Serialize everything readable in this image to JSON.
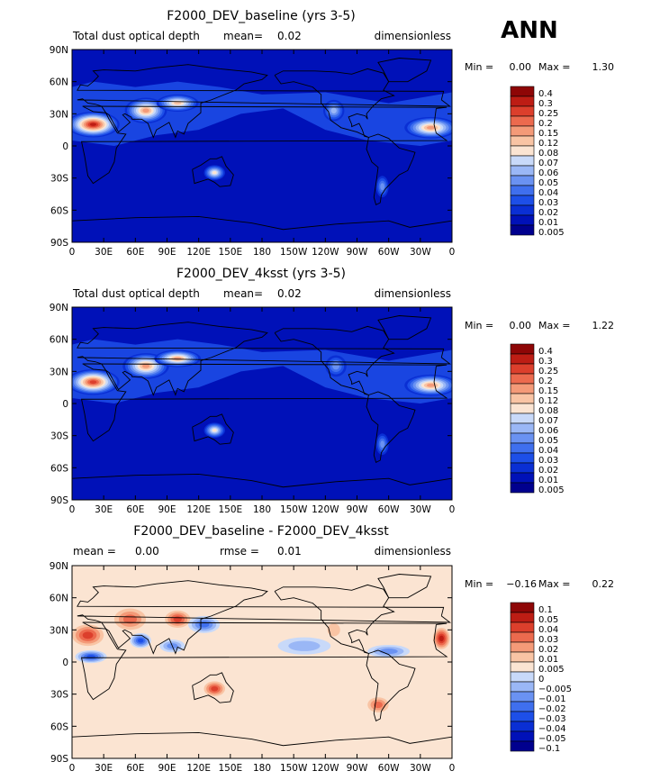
{
  "season_label": "ANN",
  "chart_data": [
    {
      "type": "heatmap",
      "title": "F2000_DEV_baseline (yrs 3-5)",
      "variable": "Total dust optical depth",
      "mean_label": "mean=",
      "mean_value": "0.02",
      "units": "dimensionless",
      "min_label": "Min =",
      "min_value": "0.00",
      "max_label": "Max =",
      "max_value": "1.30",
      "x_ticks": [
        "0",
        "30E",
        "60E",
        "90E",
        "120E",
        "150E",
        "180",
        "150W",
        "120W",
        "90W",
        "60W",
        "30W",
        "0"
      ],
      "y_ticks": [
        "90N",
        "60N",
        "30N",
        "0",
        "30S",
        "60S",
        "90S"
      ],
      "colorbar": [
        "0.005",
        "0.01",
        "0.02",
        "0.03",
        "0.04",
        "0.05",
        "0.06",
        "0.07",
        "0.08",
        "0.12",
        "0.15",
        "0.2",
        "0.25",
        "0.3",
        "0.4"
      ],
      "colors": [
        "#00008e",
        "#0011b8",
        "#0a2fd4",
        "#1d4fe8",
        "#3f6fee",
        "#6a92f2",
        "#9ab7f6",
        "#c8d9f9",
        "#fbe4d2",
        "#f9c4a4",
        "#f49a78",
        "#ec6a4e",
        "#dc3f2c",
        "#bd1d14",
        "#8e0606"
      ],
      "hotspots": [
        {
          "lon": 20,
          "lat": 20,
          "level": 13,
          "rx": 25,
          "ry": 12
        },
        {
          "lon": 70,
          "lat": 33,
          "level": 10,
          "rx": 20,
          "ry": 12
        },
        {
          "lon": 100,
          "lat": 40,
          "level": 9,
          "rx": 20,
          "ry": 8
        },
        {
          "lon": 135,
          "lat": -25,
          "level": 8,
          "rx": 10,
          "ry": 7
        },
        {
          "lon": 248,
          "lat": 33,
          "level": 6,
          "rx": 10,
          "ry": 10
        },
        {
          "lon": 294,
          "lat": -38,
          "level": 5,
          "rx": 6,
          "ry": 10
        },
        {
          "lon": 340,
          "lat": 17,
          "level": 10,
          "rx": 25,
          "ry": 10
        }
      ]
    },
    {
      "type": "heatmap",
      "title": "F2000_DEV_4ksst (yrs 3-5)",
      "variable": "Total dust optical depth",
      "mean_label": "mean=",
      "mean_value": "0.02",
      "units": "dimensionless",
      "min_label": "Min =",
      "min_value": "0.00",
      "max_label": "Max =",
      "max_value": "1.22",
      "x_ticks": [
        "0",
        "30E",
        "60E",
        "90E",
        "120E",
        "150E",
        "180",
        "150W",
        "120W",
        "90W",
        "60W",
        "30W",
        "0"
      ],
      "y_ticks": [
        "90N",
        "60N",
        "30N",
        "0",
        "30S",
        "60S",
        "90S"
      ],
      "colorbar": [
        "0.005",
        "0.01",
        "0.02",
        "0.03",
        "0.04",
        "0.05",
        "0.06",
        "0.07",
        "0.08",
        "0.12",
        "0.15",
        "0.2",
        "0.25",
        "0.3",
        "0.4"
      ],
      "colors": [
        "#00008e",
        "#0011b8",
        "#0a2fd4",
        "#1d4fe8",
        "#3f6fee",
        "#6a92f2",
        "#9ab7f6",
        "#c8d9f9",
        "#fbe4d2",
        "#f9c4a4",
        "#f49a78",
        "#ec6a4e",
        "#dc3f2c",
        "#bd1d14",
        "#8e0606"
      ],
      "hotspots": [
        {
          "lon": 20,
          "lat": 20,
          "level": 12,
          "rx": 25,
          "ry": 12
        },
        {
          "lon": 70,
          "lat": 35,
          "level": 10,
          "rx": 22,
          "ry": 12
        },
        {
          "lon": 100,
          "lat": 42,
          "level": 10,
          "rx": 22,
          "ry": 8
        },
        {
          "lon": 135,
          "lat": -25,
          "level": 8,
          "rx": 10,
          "ry": 7
        },
        {
          "lon": 250,
          "lat": 35,
          "level": 5,
          "rx": 10,
          "ry": 10
        },
        {
          "lon": 294,
          "lat": -38,
          "level": 5,
          "rx": 6,
          "ry": 10
        },
        {
          "lon": 340,
          "lat": 17,
          "level": 10,
          "rx": 25,
          "ry": 10
        }
      ]
    },
    {
      "type": "heatmap",
      "title": "F2000_DEV_baseline - F2000_DEV_4ksst",
      "variable": "",
      "mean_label": "mean =",
      "mean_value": "0.00",
      "rmse_label": "rmse =",
      "rmse_value": "0.01",
      "units": "dimensionless",
      "min_label": "Min =",
      "min_value": "−0.16",
      "max_label": "Max =",
      "max_value": "0.22",
      "x_ticks": [
        "0",
        "30E",
        "60E",
        "90E",
        "120E",
        "150E",
        "180",
        "150W",
        "120W",
        "90W",
        "60W",
        "30W",
        "0"
      ],
      "y_ticks": [
        "90N",
        "60N",
        "30N",
        "0",
        "30S",
        "60S",
        "90S"
      ],
      "colorbar": [
        "−0.1",
        "−0.05",
        "−0.04",
        "−0.03",
        "−0.02",
        "−0.01",
        "−0.005",
        "0",
        "0.005",
        "0.01",
        "0.02",
        "0.03",
        "0.04",
        "0.05",
        "0.1"
      ],
      "colors": [
        "#00008e",
        "#0011b8",
        "#0a2fd4",
        "#1d4fe8",
        "#3f6fee",
        "#6a92f2",
        "#9ab7f6",
        "#c8d9f9",
        "#fbe4d2",
        "#f9c4a4",
        "#f49a78",
        "#ec6a4e",
        "#dc3f2c",
        "#bd1d14",
        "#8e0606"
      ],
      "background_level": 8,
      "hotspots": [
        {
          "lon": 15,
          "lat": 25,
          "level": 12,
          "rx": 15,
          "ry": 10
        },
        {
          "lon": 18,
          "lat": 5,
          "level": 3,
          "rx": 15,
          "ry": 6
        },
        {
          "lon": 55,
          "lat": 40,
          "level": 11,
          "rx": 15,
          "ry": 10
        },
        {
          "lon": 65,
          "lat": 20,
          "level": 3,
          "rx": 10,
          "ry": 7
        },
        {
          "lon": 100,
          "lat": 40,
          "level": 12,
          "rx": 12,
          "ry": 8
        },
        {
          "lon": 125,
          "lat": 35,
          "level": 4,
          "rx": 15,
          "ry": 8
        },
        {
          "lon": 95,
          "lat": 15,
          "level": 5,
          "rx": 12,
          "ry": 6
        },
        {
          "lon": 135,
          "lat": -25,
          "level": 12,
          "rx": 10,
          "ry": 7
        },
        {
          "lon": 220,
          "lat": 15,
          "level": 6,
          "rx": 25,
          "ry": 8
        },
        {
          "lon": 300,
          "lat": 10,
          "level": 5,
          "rx": 20,
          "ry": 6
        },
        {
          "lon": 290,
          "lat": -40,
          "level": 11,
          "rx": 10,
          "ry": 7
        },
        {
          "lon": 350,
          "lat": 22,
          "level": 13,
          "rx": 8,
          "ry": 10
        },
        {
          "lon": 248,
          "lat": 30,
          "level": 9,
          "rx": 6,
          "ry": 6
        }
      ]
    }
  ]
}
